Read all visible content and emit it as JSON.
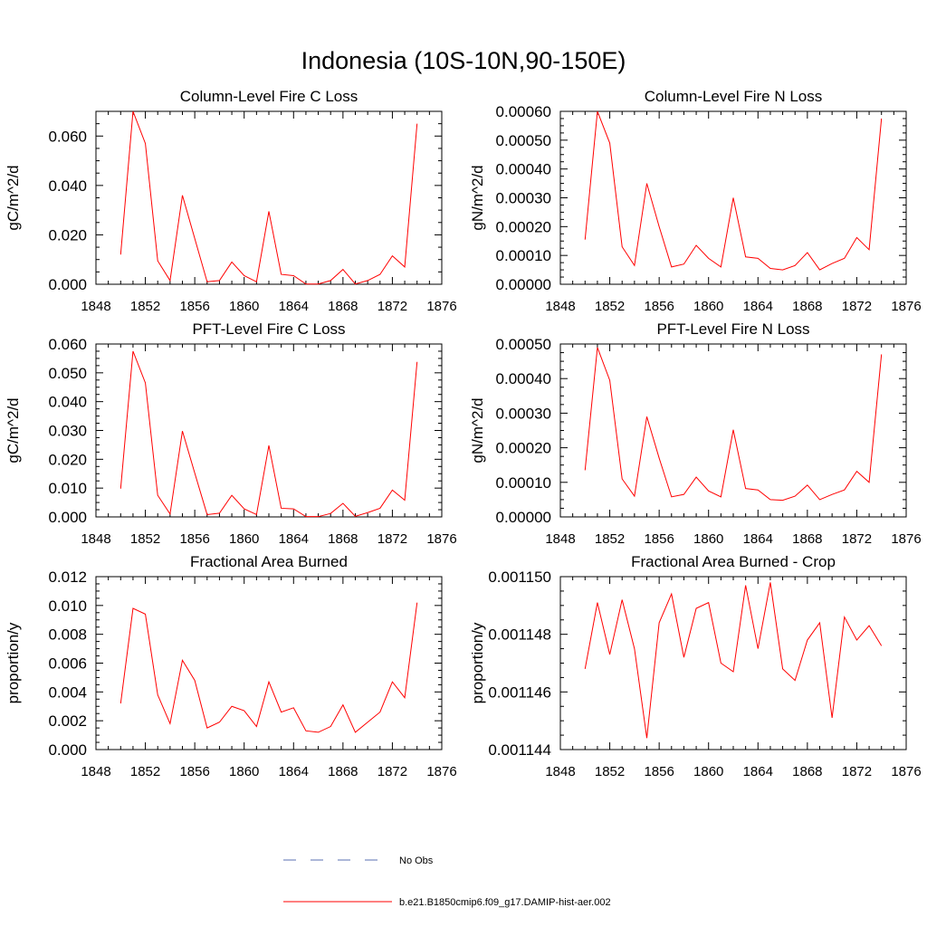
{
  "figure": {
    "title": "Indonesia (10S-10N,90-150E)",
    "legend": {
      "placement": "bottom-center",
      "entries": [
        {
          "label": "No Obs",
          "color": "#5a6fb0",
          "style": "dashed"
        },
        {
          "label": "b.e21.B1850cmip6.f09_g17.DAMIP-hist-aer.002",
          "color": "#ff0000",
          "style": "solid"
        }
      ]
    }
  },
  "chart_data": [
    {
      "type": "line",
      "title": "Column-Level Fire C Loss",
      "ylabel": "gC/m^2/d",
      "xlabel": "",
      "xlim": [
        1848,
        1876
      ],
      "ylim": [
        0,
        0.07
      ],
      "xticks": [
        1848,
        1852,
        1856,
        1860,
        1864,
        1868,
        1872,
        1876
      ],
      "xtick_labels": [
        "1848",
        "1852",
        "1856",
        "1860",
        "1864",
        "1868",
        "1872",
        "1876"
      ],
      "yticks": [
        0,
        0.02,
        0.04,
        0.06
      ],
      "ytick_labels": [
        "0.000",
        "0.020",
        "0.040",
        "0.060"
      ],
      "series": [
        {
          "color": "#ff0000",
          "x": [
            1850,
            1851,
            1852,
            1853,
            1854,
            1855,
            1856,
            1857,
            1858,
            1859,
            1860,
            1861,
            1862,
            1863,
            1864,
            1865,
            1866,
            1867,
            1868,
            1869,
            1870,
            1871,
            1872,
            1873,
            1874
          ],
          "y": [
            0.012,
            0.07,
            0.057,
            0.0095,
            0.0015,
            0.036,
            0.0185,
            0.001,
            0.0015,
            0.009,
            0.0035,
            0.001,
            0.0295,
            0.004,
            0.0035,
            0.0001,
            0.0001,
            0.0015,
            0.006,
            0.0001,
            0.0015,
            0.004,
            0.0115,
            0.007,
            0.065
          ]
        }
      ]
    },
    {
      "type": "line",
      "title": "Column-Level Fire N Loss",
      "ylabel": "gN/m^2/d",
      "xlabel": "",
      "xlim": [
        1848,
        1876
      ],
      "ylim": [
        0,
        0.0006
      ],
      "xticks": [
        1848,
        1852,
        1856,
        1860,
        1864,
        1868,
        1872,
        1876
      ],
      "xtick_labels": [
        "1848",
        "1852",
        "1856",
        "1860",
        "1864",
        "1868",
        "1872",
        "1876"
      ],
      "yticks": [
        0,
        0.0001,
        0.0002,
        0.0003,
        0.0004,
        0.0005,
        0.0006
      ],
      "ytick_labels": [
        "0.00000",
        "0.00010",
        "0.00020",
        "0.00030",
        "0.00040",
        "0.00050",
        "0.00060"
      ],
      "series": [
        {
          "color": "#ff0000",
          "x": [
            1850,
            1851,
            1852,
            1853,
            1854,
            1855,
            1856,
            1857,
            1858,
            1859,
            1860,
            1861,
            1862,
            1863,
            1864,
            1865,
            1866,
            1867,
            1868,
            1869,
            1870,
            1871,
            1872,
            1873,
            1874
          ],
          "y": [
            0.000155,
            0.0006,
            0.00049,
            0.00013,
            6.5e-05,
            0.00035,
            0.0002,
            6e-05,
            7e-05,
            0.000135,
            9e-05,
            6e-05,
            0.0003,
            9.5e-05,
            9e-05,
            5.5e-05,
            5e-05,
            6.5e-05,
            0.00011,
            5e-05,
            7.2e-05,
            9e-05,
            0.000162,
            0.00012,
            0.000575
          ]
        }
      ]
    },
    {
      "type": "line",
      "title": "PFT-Level Fire C Loss",
      "ylabel": "gC/m^2/d",
      "xlabel": "",
      "xlim": [
        1848,
        1876
      ],
      "ylim": [
        0,
        0.06
      ],
      "xticks": [
        1848,
        1852,
        1856,
        1860,
        1864,
        1868,
        1872,
        1876
      ],
      "xtick_labels": [
        "1848",
        "1852",
        "1856",
        "1860",
        "1864",
        "1868",
        "1872",
        "1876"
      ],
      "yticks": [
        0,
        0.01,
        0.02,
        0.03,
        0.04,
        0.05,
        0.06
      ],
      "ytick_labels": [
        "0.000",
        "0.010",
        "0.020",
        "0.030",
        "0.040",
        "0.050",
        "0.060"
      ],
      "series": [
        {
          "color": "#ff0000",
          "x": [
            1850,
            1851,
            1852,
            1853,
            1854,
            1855,
            1856,
            1857,
            1858,
            1859,
            1860,
            1861,
            1862,
            1863,
            1864,
            1865,
            1866,
            1867,
            1868,
            1869,
            1870,
            1871,
            1872,
            1873,
            1874
          ],
          "y": [
            0.0098,
            0.0575,
            0.0465,
            0.0075,
            0.001,
            0.0298,
            0.0152,
            0.0008,
            0.0013,
            0.0075,
            0.0028,
            0.0008,
            0.0248,
            0.003,
            0.0028,
            0.0001,
            0.0001,
            0.0012,
            0.0047,
            0.0002,
            0.0015,
            0.003,
            0.0093,
            0.0058,
            0.0538
          ]
        }
      ]
    },
    {
      "type": "line",
      "title": "PFT-Level Fire N Loss",
      "ylabel": "gN/m^2/d",
      "xlabel": "",
      "xlim": [
        1848,
        1876
      ],
      "ylim": [
        0,
        0.0005
      ],
      "xticks": [
        1848,
        1852,
        1856,
        1860,
        1864,
        1868,
        1872,
        1876
      ],
      "xtick_labels": [
        "1848",
        "1852",
        "1856",
        "1860",
        "1864",
        "1868",
        "1872",
        "1876"
      ],
      "yticks": [
        0,
        0.0001,
        0.0002,
        0.0003,
        0.0004,
        0.0005
      ],
      "ytick_labels": [
        "0.00000",
        "0.00010",
        "0.00020",
        "0.00030",
        "0.00040",
        "0.00050"
      ],
      "series": [
        {
          "color": "#ff0000",
          "x": [
            1850,
            1851,
            1852,
            1853,
            1854,
            1855,
            1856,
            1857,
            1858,
            1859,
            1860,
            1861,
            1862,
            1863,
            1864,
            1865,
            1866,
            1867,
            1868,
            1869,
            1870,
            1871,
            1872,
            1873,
            1874
          ],
          "y": [
            0.000135,
            0.00049,
            0.000395,
            0.00011,
            6e-05,
            0.00029,
            0.00017,
            5.8e-05,
            6.5e-05,
            0.000115,
            7.5e-05,
            5.8e-05,
            0.000252,
            8.2e-05,
            7.8e-05,
            5e-05,
            4.8e-05,
            6e-05,
            9.2e-05,
            5e-05,
            6.5e-05,
            7.8e-05,
            0.000132,
            0.0001,
            0.00047
          ]
        }
      ]
    },
    {
      "type": "line",
      "title": "Fractional Area Burned",
      "ylabel": "proportion/y",
      "xlabel": "",
      "xlim": [
        1848,
        1876
      ],
      "ylim": [
        0,
        0.012
      ],
      "xticks": [
        1848,
        1852,
        1856,
        1860,
        1864,
        1868,
        1872,
        1876
      ],
      "xtick_labels": [
        "1848",
        "1852",
        "1856",
        "1860",
        "1864",
        "1868",
        "1872",
        "1876"
      ],
      "yticks": [
        0,
        0.002,
        0.004,
        0.006,
        0.008,
        0.01,
        0.012
      ],
      "ytick_labels": [
        "0.000",
        "0.002",
        "0.004",
        "0.006",
        "0.008",
        "0.010",
        "0.012"
      ],
      "series": [
        {
          "color": "#ff0000",
          "x": [
            1850,
            1851,
            1852,
            1853,
            1854,
            1855,
            1856,
            1857,
            1858,
            1859,
            1860,
            1861,
            1862,
            1863,
            1864,
            1865,
            1866,
            1867,
            1868,
            1869,
            1870,
            1871,
            1872,
            1873,
            1874
          ],
          "y": [
            0.0032,
            0.0098,
            0.0094,
            0.0038,
            0.0018,
            0.0062,
            0.0048,
            0.0015,
            0.0019,
            0.003,
            0.0027,
            0.0016,
            0.0047,
            0.0026,
            0.0029,
            0.0013,
            0.0012,
            0.0016,
            0.0031,
            0.0012,
            0.0019,
            0.0026,
            0.0047,
            0.0036,
            0.0102
          ]
        }
      ]
    },
    {
      "type": "line",
      "title": "Fractional Area Burned - Crop",
      "ylabel": "proportion/y",
      "xlabel": "",
      "xlim": [
        1848,
        1876
      ],
      "ylim": [
        0.001144,
        0.00115
      ],
      "xticks": [
        1848,
        1852,
        1856,
        1860,
        1864,
        1868,
        1872,
        1876
      ],
      "xtick_labels": [
        "1848",
        "1852",
        "1856",
        "1860",
        "1864",
        "1868",
        "1872",
        "1876"
      ],
      "yticks": [
        0.001144,
        0.001146,
        0.001148,
        0.00115
      ],
      "ytick_labels": [
        "0.001144",
        "0.001146",
        "0.001148",
        "0.001150"
      ],
      "series": [
        {
          "color": "#ff0000",
          "x": [
            1850,
            1851,
            1852,
            1853,
            1854,
            1855,
            1856,
            1857,
            1858,
            1859,
            1860,
            1861,
            1862,
            1863,
            1864,
            1865,
            1866,
            1867,
            1868,
            1869,
            1870,
            1871,
            1872,
            1873,
            1874
          ],
          "y": [
            0.0011468,
            0.0011491,
            0.0011473,
            0.0011492,
            0.0011475,
            0.0011444,
            0.0011484,
            0.0011494,
            0.0011472,
            0.0011489,
            0.0011491,
            0.001147,
            0.0011467,
            0.0011497,
            0.0011475,
            0.0011498,
            0.0011468,
            0.0011464,
            0.0011478,
            0.0011484,
            0.0011451,
            0.0011486,
            0.0011478,
            0.0011483,
            0.0011476
          ]
        }
      ]
    }
  ]
}
